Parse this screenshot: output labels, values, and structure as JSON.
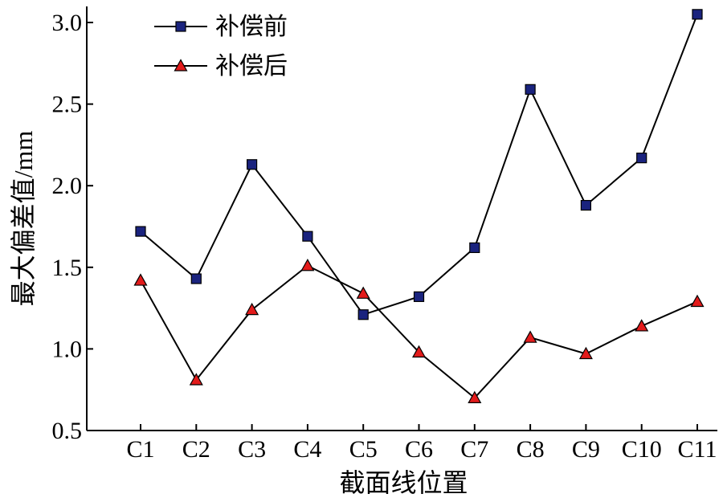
{
  "chart_data": {
    "type": "line",
    "categories": [
      "C1",
      "C2",
      "C3",
      "C4",
      "C5",
      "C6",
      "C7",
      "C8",
      "C9",
      "C10",
      "C11"
    ],
    "series": [
      {
        "name": "补偿前",
        "marker": "square",
        "color": "#1a237e",
        "values": [
          1.72,
          1.43,
          2.13,
          1.69,
          1.21,
          1.32,
          1.62,
          2.59,
          1.88,
          2.17,
          3.05
        ]
      },
      {
        "name": "补偿后",
        "marker": "triangle",
        "color": "#e31b1b",
        "values": [
          1.42,
          0.81,
          1.24,
          1.51,
          1.34,
          0.98,
          0.7,
          1.07,
          0.97,
          1.14,
          1.29
        ]
      }
    ],
    "xlabel": "截面线位置",
    "ylabel": "最大偏差值/mm",
    "ylim": [
      0.5,
      3.0
    ],
    "yticks": [
      0.5,
      1.0,
      1.5,
      2.0,
      2.5,
      3.0
    ],
    "ytick_labels": [
      "0.5",
      "1.0",
      "1.5",
      "2.0",
      "2.5",
      "3.0"
    ],
    "grid": false,
    "legend_position": "top-left"
  }
}
